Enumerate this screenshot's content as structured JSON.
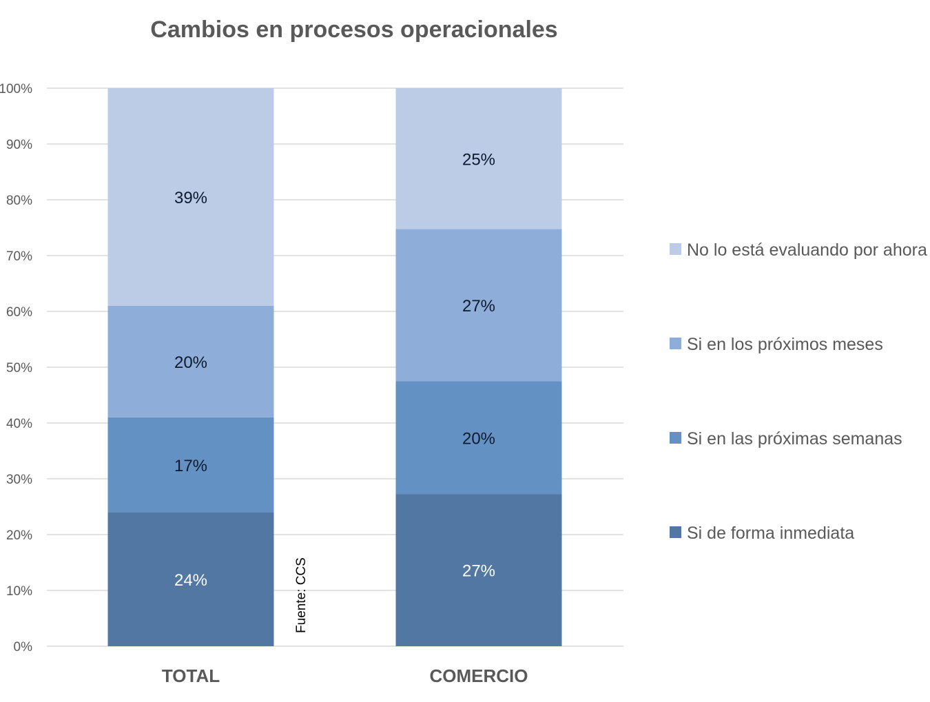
{
  "chart_data": {
    "type": "bar",
    "stacked": true,
    "percent": true,
    "title": "Cambios en procesos operacionales",
    "xlabel": "",
    "ylabel": "",
    "ylim": [
      0,
      100
    ],
    "grid": true,
    "legend_position": "right",
    "categories": [
      "TOTAL",
      "COMERCIO"
    ],
    "y_ticks": [
      "0%",
      "10%",
      "20%",
      "30%",
      "40%",
      "50%",
      "60%",
      "70%",
      "80%",
      "90%",
      "100%"
    ],
    "series": [
      {
        "name": "Si de forma inmediata",
        "values": [
          24,
          27
        ],
        "labels": [
          "24%",
          "27%"
        ],
        "color": "#5177a2",
        "label_color": "#ffffff"
      },
      {
        "name": "Si en las próximas semanas",
        "values": [
          17,
          20
        ],
        "labels": [
          "17%",
          "20%"
        ],
        "color": "#6391c3",
        "label_color": "#0d1a2d"
      },
      {
        "name": "Si en los próximos meses",
        "values": [
          20,
          27
        ],
        "labels": [
          "20%",
          "27%"
        ],
        "color": "#8eaed9",
        "label_color": "#0d1a2d"
      },
      {
        "name": "No lo está evaluando por ahora",
        "values": [
          39,
          25
        ],
        "labels": [
          "39%",
          "25%"
        ],
        "color": "#bccce6",
        "label_color": "#0d1a2d"
      }
    ],
    "legend_order": [
      "No lo está evaluando por ahora",
      "Si en los próximos meses",
      "Si en las próximas semanas",
      "Si de forma inmediata"
    ],
    "annotation": "Fuente: CCS"
  },
  "colors": {
    "grid": "#d9d9d9",
    "text": "#595959"
  }
}
